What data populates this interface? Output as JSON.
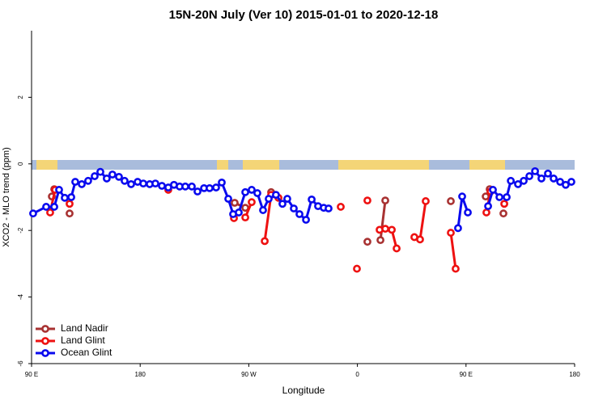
{
  "chart_data": {
    "type": "line",
    "title": "15N-20N July (Ver 10)   2015-01-01 to 2020-12-18",
    "x_label": "Longitude",
    "y_label": "XCO2 - MLO trend (ppm)",
    "xlim": [
      90,
      540
    ],
    "ylim": [
      -6,
      4
    ],
    "xticks": [
      {
        "value": 90,
        "label": "90 E"
      },
      180,
      {
        "value": 270,
        "label": "90 W"
      },
      {
        "value": 360,
        "label": "0"
      },
      {
        "value": 450,
        "label": "90 E"
      },
      {
        "value": 540,
        "label": "180"
      }
    ],
    "yticks": [
      -6,
      -4,
      -2,
      0,
      2
    ],
    "legend": "bottom-left",
    "series": [
      {
        "name": "Land Nadir",
        "color": "#a83232",
        "x": [
          106.8,
          108.8,
          null,
          121.5,
          null,
          258.3,
          267.1,
          null,
          288.5,
          null,
          368.3,
          null,
          379.1,
          383.1,
          null,
          437.4,
          null,
          466.3,
          469.6,
          null,
          481.0
        ],
        "values": [
          -0.98,
          -0.76,
          null,
          -1.49,
          null,
          -1.17,
          -1.32,
          null,
          -0.85,
          null,
          -2.34,
          null,
          -2.29,
          -1.1,
          null,
          -1.12,
          null,
          -0.98,
          -0.76,
          null,
          -1.49
        ]
      },
      {
        "name": "Land Glint",
        "color": "#ee1111",
        "x": [
          105.4,
          109.5,
          null,
          121.5,
          null,
          203.3,
          null,
          257.7,
          null,
          267.1,
          272.4,
          null,
          283.2,
          288.5,
          294.6,
          null,
          346.2,
          null,
          359.6,
          null,
          368.3,
          null,
          378.4,
          383.1,
          388.5,
          392.5,
          null,
          407.2,
          411.9,
          416.6,
          null,
          437.4,
          441.4,
          null,
          466.9,
          470.3,
          null,
          481.7
        ],
        "values": [
          -1.46,
          -0.78,
          null,
          -1.2,
          null,
          -0.78,
          null,
          -1.63,
          null,
          -1.61,
          -1.15,
          null,
          -2.32,
          -0.93,
          -1.02,
          null,
          -1.29,
          null,
          -3.15,
          null,
          -1.1,
          null,
          -1.98,
          -1.95,
          -1.98,
          -2.54,
          null,
          -2.2,
          -2.27,
          -1.12,
          null,
          -2.07,
          -3.15,
          null,
          -1.46,
          -0.83,
          null,
          -1.2
        ]
      },
      {
        "name": "Ocean Glint",
        "color": "#0a0aee",
        "x": [
          91.3,
          102.1,
          108.8,
          112.8,
          117.5,
          122.9,
          126.2,
          131.6,
          136.9,
          142.3,
          147.0,
          152.3,
          157.0,
          162.4,
          167.1,
          172.5,
          177.9,
          182.6,
          187.9,
          192.6,
          198.0,
          203.3,
          208.0,
          212.7,
          217.4,
          222.8,
          227.5,
          232.9,
          237.5,
          242.9,
          247.6,
          253.0,
          257.0,
          261.7,
          267.1,
          272.4,
          277.1,
          281.8,
          286.5,
          292.5,
          297.9,
          301.9,
          307.3,
          312.0,
          317.4,
          322.1,
          327.4,
          332.1,
          336.1,
          null,
          443.4,
          446.8,
          451.5,
          null,
          468.3,
          472.3,
          477.7,
          483.7,
          487.1,
          493.1,
          497.8,
          502.5,
          507.2,
          512.5,
          517.9,
          522.6,
          528.0,
          532.6,
          537.3
        ],
        "values": [
          -1.49,
          -1.29,
          -1.29,
          -0.78,
          -1.02,
          -1.0,
          -0.54,
          -0.61,
          -0.51,
          -0.37,
          -0.24,
          -0.44,
          -0.32,
          -0.39,
          -0.51,
          -0.61,
          -0.54,
          -0.59,
          -0.61,
          -0.59,
          -0.66,
          -0.71,
          -0.63,
          -0.68,
          -0.68,
          -0.68,
          -0.83,
          -0.73,
          -0.73,
          -0.71,
          -0.56,
          -1.05,
          -1.51,
          -1.46,
          -0.85,
          -0.78,
          -0.88,
          -1.39,
          -1.05,
          -0.93,
          -1.2,
          -1.05,
          -1.34,
          -1.51,
          -1.68,
          -1.07,
          -1.27,
          -1.32,
          -1.34,
          null,
          -1.93,
          -0.98,
          -1.46,
          null,
          -1.27,
          -0.78,
          -1.0,
          -1.0,
          -0.51,
          -0.61,
          -0.51,
          -0.37,
          -0.22,
          -0.44,
          -0.29,
          -0.44,
          -0.54,
          -0.63,
          -0.54
        ]
      }
    ]
  }
}
